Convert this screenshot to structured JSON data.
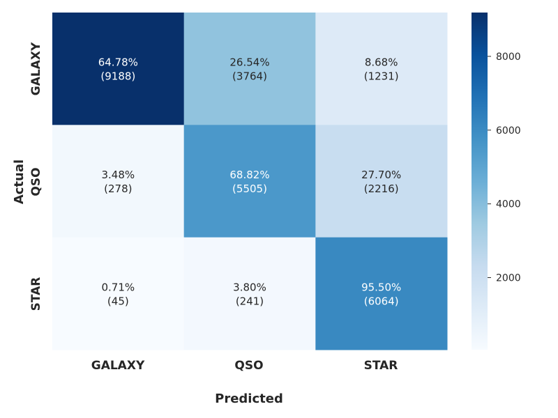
{
  "chart_data": {
    "type": "heatmap",
    "xlabel": "Predicted",
    "ylabel": "Actual",
    "x_categories": [
      "GALAXY",
      "QSO",
      "STAR"
    ],
    "y_categories": [
      "GALAXY",
      "QSO",
      "STAR"
    ],
    "counts": [
      [
        9188,
        3764,
        1231
      ],
      [
        278,
        5505,
        2216
      ],
      [
        45,
        241,
        6064
      ]
    ],
    "percent_labels": [
      [
        "64.78%",
        "26.54%",
        "8.68%"
      ],
      [
        "3.48%",
        "68.82%",
        "27.70%"
      ],
      [
        "0.71%",
        "3.80%",
        "95.50%"
      ]
    ],
    "count_labels": [
      [
        "(9188)",
        "(3764)",
        "(1231)"
      ],
      [
        "(278)",
        "(5505)",
        "(2216)"
      ],
      [
        "(45)",
        "(241)",
        "(6064)"
      ]
    ],
    "colormap": "Blues",
    "colorbar": {
      "range": [
        45,
        9188
      ],
      "ticks": [
        2000,
        4000,
        6000,
        8000
      ],
      "tick_labels": [
        "2000",
        "4000",
        "6000",
        "8000"
      ]
    },
    "colors": {
      "light": "#f7fbff",
      "dark": "#08306b",
      "text_dark": "#262626",
      "text_light": "#ffffff"
    }
  }
}
